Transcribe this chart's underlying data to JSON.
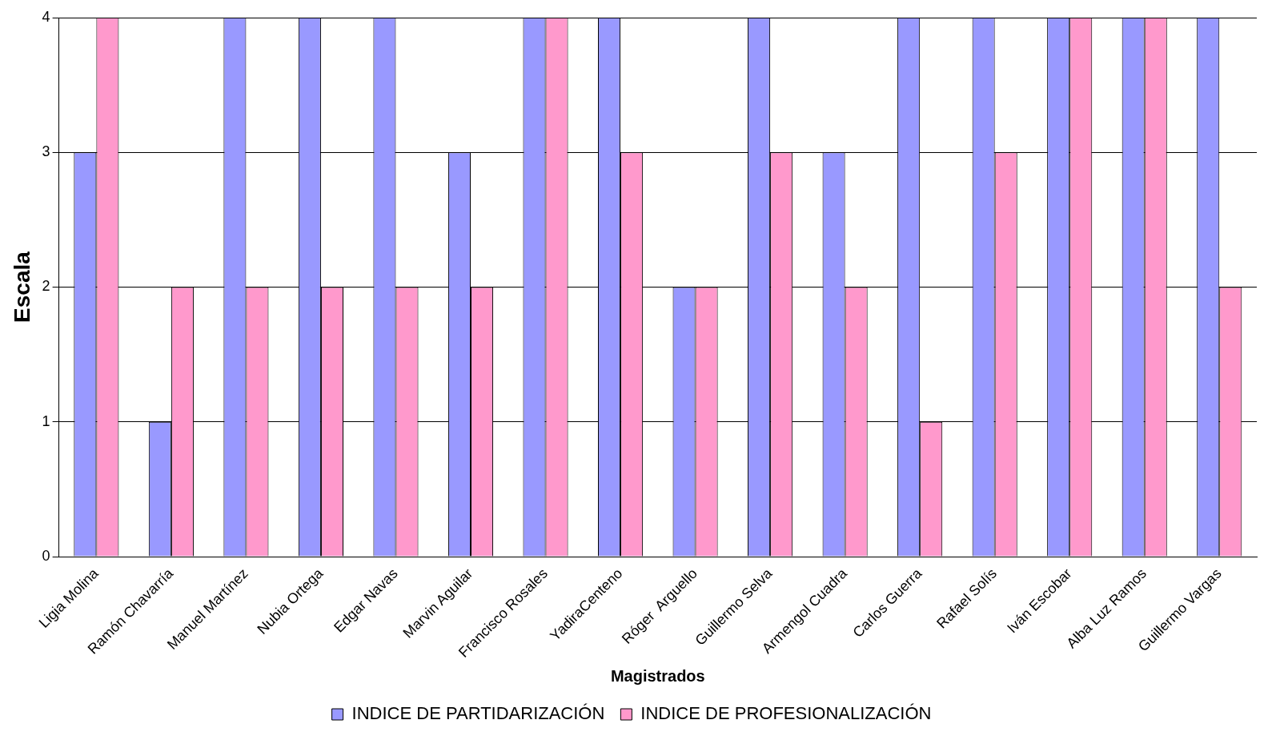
{
  "chart_data": {
    "type": "bar",
    "xlabel": "Magistrados",
    "ylabel": "Escala",
    "categories": [
      "Ligia Molina",
      "Ramón Chavarría",
      "Manuel Martínez",
      "Nubia Ortega",
      "Edgar Navas",
      "Marvin Aguilar",
      "Francisco Rosales",
      "YadiraCenteno",
      "Róger  Arguello",
      "Guillermo Selva",
      "Armengol Cuadra",
      "Carlos Guerra",
      "Rafael Solís",
      "Iván Escobar",
      "Alba Luz Ramos",
      "Guillermo Vargas"
    ],
    "series": [
      {
        "name": "INDICE DE PARTIDARIZACIÓN",
        "color": "#9999ff",
        "values": [
          3,
          1,
          4,
          4,
          4,
          3,
          4,
          4,
          2,
          4,
          3,
          4,
          4,
          4,
          4,
          4
        ]
      },
      {
        "name": "INDICE DE PROFESIONALIZACIÓN",
        "color": "#ff99cc",
        "values": [
          4,
          2,
          2,
          2,
          2,
          2,
          4,
          3,
          2,
          3,
          2,
          1,
          3,
          4,
          4,
          2
        ]
      }
    ],
    "ylim": [
      0,
      4
    ],
    "yticks": [
      0,
      1,
      2,
      3,
      4
    ],
    "grid": "y",
    "legend": "bottom"
  }
}
